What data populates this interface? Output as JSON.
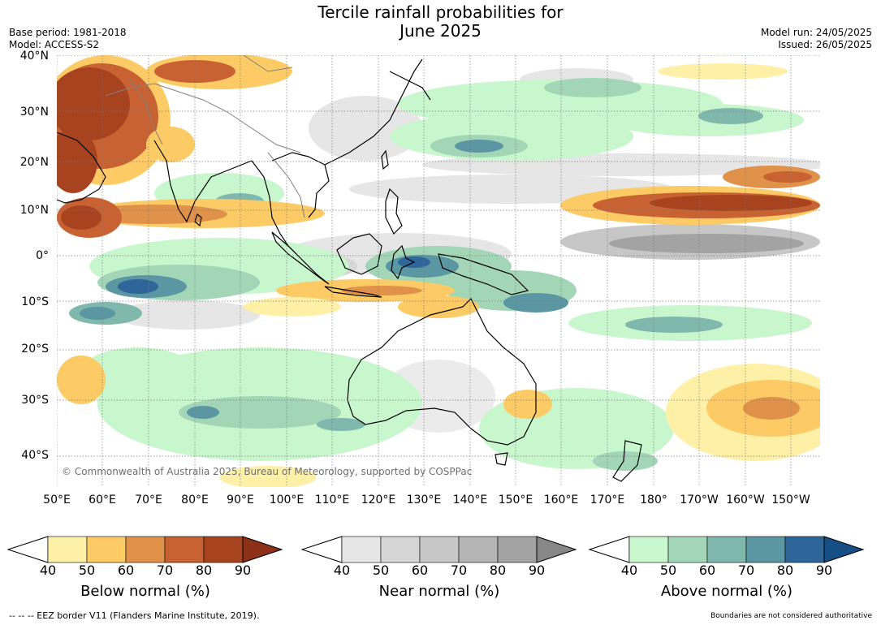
{
  "title_line1": "Tercile rainfall probabilities for",
  "title_line2": "June 2025",
  "meta_left": {
    "base_period": "Base period: 1981-2018",
    "model": "Model: ACCESS-S2"
  },
  "meta_right": {
    "model_run": "Model run: 24/05/2025",
    "issued": "Issued: 26/05/2025"
  },
  "credit": "© Commonwealth of Australia 2025, Bureau of Meteorology, supported by COSPPac",
  "lat_labels": [
    "40°N",
    "30°N",
    "20°N",
    "10°N",
    "0°",
    "10°S",
    "20°S",
    "30°S",
    "40°S"
  ],
  "lon_labels": [
    "50°E",
    "60°E",
    "70°E",
    "80°E",
    "90°E",
    "100°E",
    "110°E",
    "120°E",
    "130°E",
    "140°E",
    "150°E",
    "160°E",
    "170°E",
    "180°",
    "170°W",
    "160°W",
    "150°W"
  ],
  "colorbars": [
    {
      "title": "Below normal (%)",
      "ticks": [
        "40",
        "50",
        "60",
        "70",
        "80",
        "90"
      ],
      "colors": [
        "#fff0a8",
        "#fdcb65",
        "#e0924a",
        "#c96232",
        "#a8431f",
        "#8c3118"
      ]
    },
    {
      "title": "Near normal (%)",
      "ticks": [
        "40",
        "50",
        "60",
        "70",
        "80",
        "90"
      ],
      "colors": [
        "#e6e6e6",
        "#d6d6d6",
        "#c7c7c7",
        "#b5b5b5",
        "#a3a3a3",
        "#878787"
      ]
    },
    {
      "title": "Above normal (%)",
      "ticks": [
        "40",
        "50",
        "60",
        "70",
        "80",
        "90"
      ],
      "colors": [
        "#c8f7cd",
        "#a3d6b7",
        "#80b8ad",
        "#5b96a3",
        "#2f6699",
        "#154f86"
      ]
    }
  ],
  "eez_note": "--  --  -- EEZ border V11 (Flanders Marine Institute, 2019).",
  "disclaimer": "Boundaries are not considered authoritative"
}
